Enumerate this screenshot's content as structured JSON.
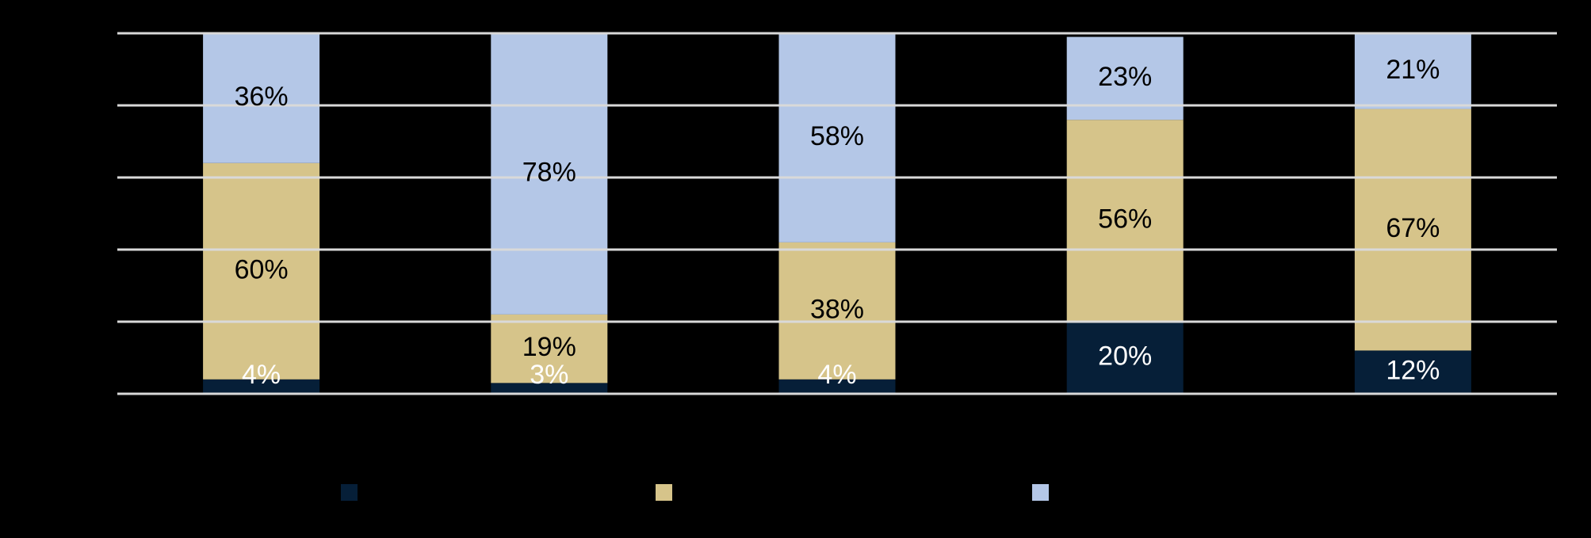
{
  "chart_data": {
    "type": "stacked-bar",
    "categories": [
      null,
      null,
      null,
      null,
      null
    ],
    "series": [
      {
        "color": "#061f38",
        "values": [
          4,
          3,
          4,
          20,
          12
        ],
        "value_labels": [
          "4%",
          "3%",
          "4%",
          "20%",
          "12%"
        ],
        "label_color": "#ffffff"
      },
      {
        "color": "#d6c48a",
        "values": [
          60,
          19,
          38,
          56,
          67
        ],
        "value_labels": [
          "60%",
          "19%",
          "38%",
          "56%",
          "67%"
        ],
        "label_color": "#000000"
      },
      {
        "color": "#b4c7e7",
        "values": [
          36,
          78,
          58,
          23,
          21
        ],
        "value_labels": [
          "36%",
          "78%",
          "58%",
          "23%",
          "21%"
        ],
        "label_color": "#000000"
      }
    ],
    "ylim": [
      0,
      100
    ],
    "yticks": [
      0,
      20,
      40,
      60,
      80,
      100
    ],
    "grid": true,
    "grid_color": "#d9d9d9"
  }
}
